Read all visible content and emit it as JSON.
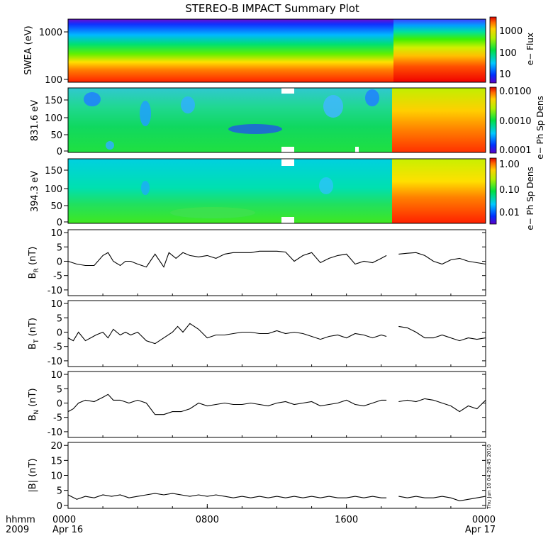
{
  "title": "STEREO-B IMPACT Summary Plot",
  "timestamp_label": "Thu Jun 10 04:26:45 2010",
  "x_axis": {
    "row1_label": "hhmm",
    "row2_label": "2009",
    "ticks": [
      {
        "hours": 0,
        "label": "0000",
        "sub": "Apr 16"
      },
      {
        "hours": 8,
        "label": "0800",
        "sub": ""
      },
      {
        "hours": 16,
        "label": "1600",
        "sub": ""
      },
      {
        "hours": 24,
        "label": "0000",
        "sub": "Apr 17"
      }
    ]
  },
  "spectrograms": [
    {
      "ylabel": "SWEA (eV)",
      "yscale": "log",
      "ylim": [
        100,
        2000
      ],
      "yticks": [
        100,
        1000
      ],
      "ytick_labels": [
        "100",
        "1000"
      ],
      "colorbar": {
        "label": "e− Flux",
        "scale": "log",
        "range": [
          5,
          3000
        ],
        "ticks": [
          10,
          100,
          1000
        ],
        "tick_labels": [
          "10",
          "100",
          "1000"
        ]
      },
      "transition_hours": 18.1
    },
    {
      "ylabel": "831.6 eV",
      "yscale": "linear",
      "ylim": [
        0,
        180
      ],
      "yticks": [
        0,
        50,
        100,
        150
      ],
      "ytick_labels": [
        "0",
        "50",
        "100",
        "150"
      ],
      "colorbar": {
        "label": "e− Ph Sp Dens",
        "scale": "log",
        "range": [
          0.0001,
          0.01
        ],
        "ticks": [
          0.0001,
          0.001,
          0.01
        ],
        "tick_labels": [
          "0.0001",
          "0.0010",
          "0.0100"
        ]
      },
      "transition_hours": 18.1
    },
    {
      "ylabel": "394.3 eV",
      "yscale": "linear",
      "ylim": [
        0,
        180
      ],
      "yticks": [
        0,
        50,
        100,
        150
      ],
      "ytick_labels": [
        "0",
        "50",
        "100",
        "150"
      ],
      "colorbar": {
        "label": "e− Ph Sp Dens",
        "scale": "log",
        "range": [
          0.004,
          1.0
        ],
        "ticks": [
          0.01,
          0.1,
          1.0
        ],
        "tick_labels": [
          "0.01",
          "0.10",
          "1.00"
        ]
      },
      "transition_hours": 18.1
    }
  ],
  "chart_data": [
    {
      "type": "line",
      "name": "B_R",
      "ylabel_main": "B",
      "ylabel_sub": "R",
      "ylabel_unit": "(nT)",
      "ylim": [
        -12,
        11
      ],
      "yticks": [
        -10,
        -5,
        0,
        5,
        10
      ],
      "x_hours": [
        0,
        0.5,
        1,
        1.5,
        2,
        2.3,
        2.6,
        3,
        3.3,
        3.6,
        4,
        4.5,
        5,
        5.5,
        5.8,
        6.2,
        6.6,
        7,
        7.5,
        8,
        8.5,
        9,
        9.5,
        10,
        10.5,
        11,
        11.5,
        12,
        12.5,
        13,
        13.5,
        14,
        14.5,
        15,
        15.5,
        16,
        16.5,
        17,
        17.5,
        18,
        18.3
      ],
      "y": [
        0,
        -1,
        -1.5,
        -1.5,
        2,
        3,
        0,
        -1.5,
        0,
        0,
        -1,
        -2,
        2.5,
        -2,
        3,
        1,
        3,
        2,
        1.5,
        2,
        1,
        2.5,
        3,
        3,
        3,
        3.5,
        3.5,
        3.5,
        3.2,
        0,
        2,
        3,
        -0.5,
        1,
        2,
        2.5,
        -1,
        0,
        -0.5,
        1,
        2
      ],
      "gap_after_index": 40,
      "x2_hours": [
        19,
        19.5,
        20,
        20.5,
        21,
        21.5,
        22,
        22.5,
        23,
        23.5,
        24
      ],
      "y2": [
        2.5,
        2.8,
        3,
        2,
        0,
        -1,
        0.5,
        1,
        0,
        -0.5,
        -1
      ]
    },
    {
      "type": "line",
      "name": "B_T",
      "ylabel_main": "B",
      "ylabel_sub": "T",
      "ylabel_unit": "(nT)",
      "ylim": [
        -12,
        11
      ],
      "yticks": [
        -10,
        -5,
        0,
        5,
        10
      ],
      "x_hours": [
        0,
        0.3,
        0.6,
        1,
        1.3,
        1.6,
        2,
        2.3,
        2.6,
        3,
        3.3,
        3.6,
        4,
        4.5,
        5,
        5.5,
        6,
        6.3,
        6.6,
        7,
        7.5,
        8,
        8.5,
        9,
        9.5,
        10,
        10.5,
        11,
        11.5,
        12,
        12.5,
        13,
        13.5,
        14,
        14.5,
        15,
        15.5,
        16,
        16.5,
        17,
        17.5,
        18,
        18.3
      ],
      "y": [
        -2,
        -3,
        0,
        -3,
        -2,
        -1,
        0,
        -2,
        1,
        -1,
        0,
        -1,
        0,
        -3,
        -4,
        -2,
        0,
        2,
        0,
        3,
        1,
        -2,
        -1,
        -1,
        -0.5,
        0,
        0,
        -0.5,
        -0.5,
        0.5,
        -0.5,
        0,
        -0.5,
        -1.5,
        -2.5,
        -1.5,
        -1,
        -2,
        -0.5,
        -1,
        -2,
        -1,
        -1.5
      ],
      "gap_after_index": 42,
      "x2_hours": [
        19,
        19.5,
        20,
        20.5,
        21,
        21.5,
        22,
        22.5,
        23,
        23.5,
        24
      ],
      "y2": [
        2,
        1.5,
        0,
        -2,
        -2,
        -1,
        -2,
        -3,
        -2,
        -2.5,
        -2
      ]
    },
    {
      "type": "line",
      "name": "B_N",
      "ylabel_main": "B",
      "ylabel_sub": "N",
      "ylabel_unit": "(nT)",
      "ylim": [
        -12,
        11
      ],
      "yticks": [
        -10,
        -5,
        0,
        5,
        10
      ],
      "x_hours": [
        0,
        0.3,
        0.6,
        1,
        1.5,
        2,
        2.3,
        2.6,
        3,
        3.5,
        4,
        4.5,
        5,
        5.5,
        6,
        6.5,
        7,
        7.5,
        8,
        8.5,
        9,
        9.5,
        10,
        10.5,
        11,
        11.5,
        12,
        12.5,
        13,
        13.5,
        14,
        14.5,
        15,
        15.5,
        16,
        16.5,
        17,
        17.5,
        18,
        18.3
      ],
      "y": [
        -3,
        -2,
        0,
        1,
        0.5,
        2,
        3,
        1,
        1,
        0,
        1,
        0,
        -4,
        -4,
        -3,
        -3,
        -2,
        0,
        -1,
        -0.5,
        0,
        -0.5,
        -0.5,
        0,
        -0.5,
        -1,
        0,
        0.5,
        -0.5,
        0,
        0.5,
        -1,
        -0.5,
        0,
        1,
        -0.5,
        -1,
        0,
        1,
        1
      ],
      "gap_after_index": 39,
      "x2_hours": [
        19,
        19.5,
        20,
        20.5,
        21,
        21.5,
        22,
        22.5,
        23,
        23.5,
        24
      ],
      "y2": [
        0.5,
        1,
        0.5,
        1.5,
        1,
        0,
        -1,
        -3,
        -1,
        -2,
        1
      ]
    },
    {
      "type": "line",
      "name": "|B|",
      "ylabel_main": "|B|",
      "ylabel_sub": "",
      "ylabel_unit": "(nT)",
      "ylim": [
        -1,
        21
      ],
      "yticks": [
        0,
        5,
        10,
        15,
        20
      ],
      "x_hours": [
        0,
        0.5,
        1,
        1.5,
        2,
        2.5,
        3,
        3.5,
        4,
        4.5,
        5,
        5.5,
        6,
        6.5,
        7,
        7.5,
        8,
        8.5,
        9,
        9.5,
        10,
        10.5,
        11,
        11.5,
        12,
        12.5,
        13,
        13.5,
        14,
        14.5,
        15,
        15.5,
        16,
        16.5,
        17,
        17.5,
        18,
        18.3
      ],
      "y": [
        3.5,
        2,
        3,
        2.5,
        3.5,
        3,
        3.5,
        2.5,
        3,
        3.5,
        4,
        3.5,
        4,
        3.5,
        3,
        3.5,
        3,
        3.5,
        3,
        2.5,
        3,
        2.5,
        3,
        2.5,
        3,
        2.5,
        3,
        2.5,
        3,
        2.5,
        3,
        2.5,
        2.5,
        3,
        2.5,
        3,
        2.5,
        2.5
      ],
      "gap_after_index": 37,
      "x2_hours": [
        19,
        19.5,
        20,
        20.5,
        21,
        21.5,
        22,
        22.5,
        23,
        23.5,
        24
      ],
      "y2": [
        3,
        2.5,
        3,
        2.5,
        2.5,
        3,
        2.5,
        1.5,
        2,
        2.5,
        3
      ]
    }
  ]
}
